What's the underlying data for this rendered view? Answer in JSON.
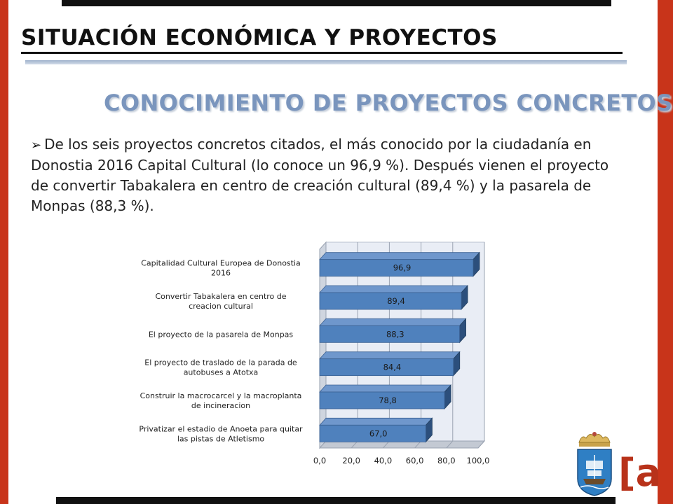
{
  "page": {
    "title": "SITUACIÓN ECONÓMICA Y PROYECTOS",
    "subtitle": "CONOCIMIENTO DE PROYECTOS CONCRETOS",
    "bullet": "De los seis proyectos concretos citados, el más conocido por la ciudadanía en Donostia 2016 Capital Cultural (lo conoce un 96,9 %). Después vienen el proyecto de convertir Tabakalera en centro de creación cultural (89,4 %) y la pasarela de Monpas (88,3 %).",
    "logo_text": "[a]"
  },
  "colors": {
    "frame": "#c8341a",
    "title_rule": "#111111",
    "subtitle": "#7a95bd",
    "bar_front": "#4f81bd",
    "bar_top": "#6f97cc",
    "bar_side": "#2c4f7c",
    "plot_wall": "#e9edf5"
  },
  "chart_data": {
    "type": "bar",
    "orientation": "horizontal",
    "three_d": true,
    "categories": [
      [
        "Capitalidad Cultural Europea de Donostia",
        "2016"
      ],
      [
        "Convertir Tabakalera en centro de",
        "creacion cultural"
      ],
      [
        "El proyecto de la pasarela de Monpas"
      ],
      [
        "El proyecto de traslado de la parada de",
        "autobuses a Atotxa"
      ],
      [
        "Construir la macrocarcel y la macroplanta",
        "de incineracion"
      ],
      [
        "Privatizar el estadio de Anoeta para quitar",
        "las pistas de Atletismo"
      ]
    ],
    "values": [
      96.9,
      89.4,
      88.3,
      84.4,
      78.8,
      67.0
    ],
    "data_labels": [
      "96,9",
      "89,4",
      "88,3",
      "84,4",
      "78,8",
      "67,0"
    ],
    "xlim": [
      0,
      100
    ],
    "xticks": [
      "0,0",
      "20,0",
      "40,0",
      "60,0",
      "80,0",
      "100,0"
    ],
    "grid": true
  }
}
